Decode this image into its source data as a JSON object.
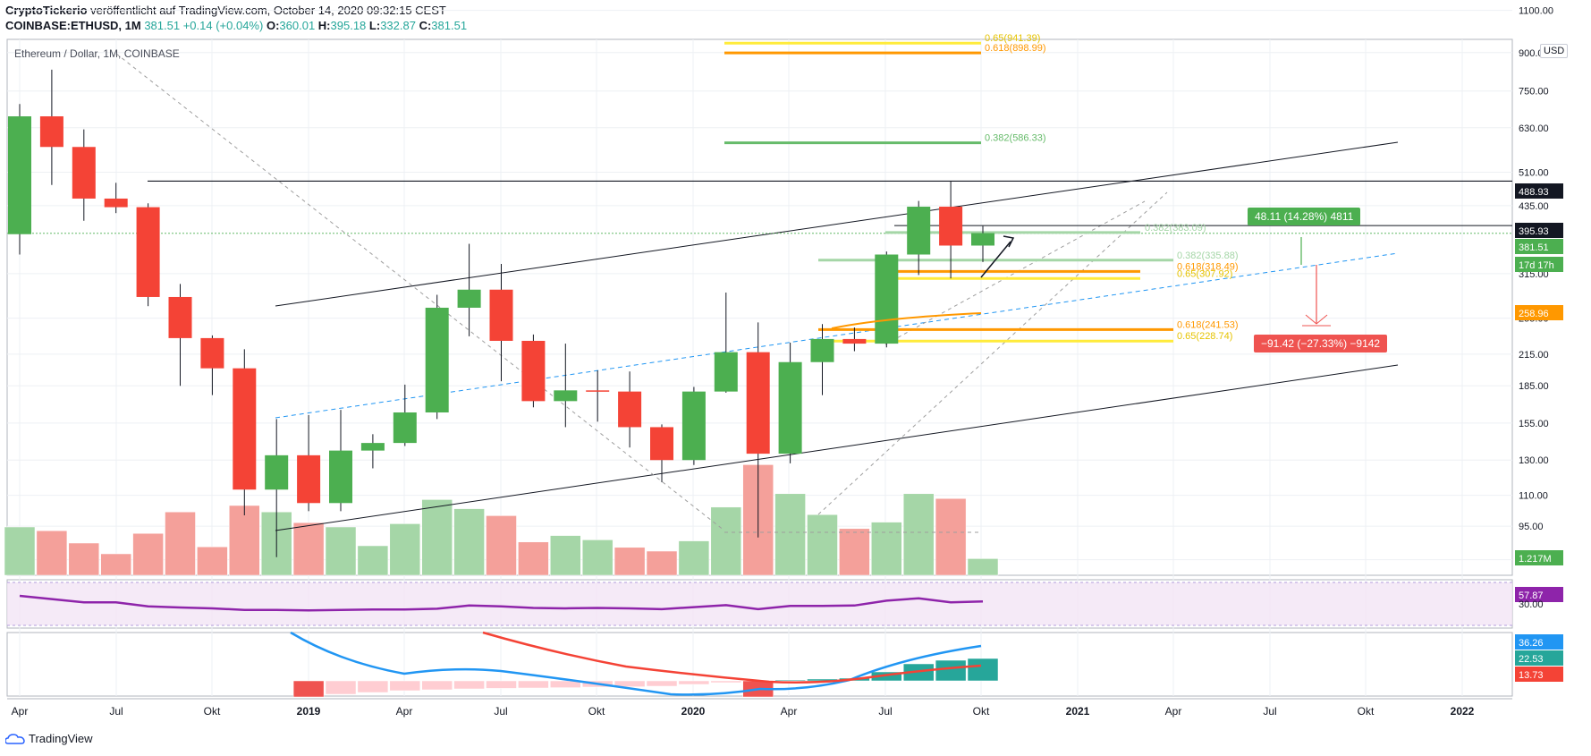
{
  "header": {
    "publisher": "CryptoTickerio",
    "published_text": " veröffentlicht auf TradingView.com, October 14, 2020 09:32:15 CEST",
    "symbol": "COINBASE:ETHUSD, 1M",
    "last": "381.51",
    "change": "+0.14 (+0.04%)",
    "o_label": "O:",
    "o": "360.01",
    "h_label": "H:",
    "h": "395.18",
    "l_label": "L:",
    "l": "332.87",
    "c_label": "C:",
    "c": "381.51"
  },
  "chart_title": "Ethereum / Dollar, 1M, COINBASE",
  "currency": "USD",
  "footer_brand": "TradingView",
  "colors": {
    "up": "#4caf50",
    "down": "#f44336",
    "vol_up": "#a5d6a7",
    "vol_down": "#f4a09a",
    "rsi": "#8e24aa",
    "ma_blue": "#2196f3",
    "ma_red": "#f44336",
    "fib_green": "#66bb6a",
    "fib_orange": "#ff9800",
    "fib_yellow": "#ffeb3b"
  },
  "chart_data": {
    "type": "candlestick",
    "scale": "log",
    "ylim": [
      68,
      1150
    ],
    "y_ticks": [
      "1100.00",
      "900.00",
      "750.00",
      "630.00",
      "510.00",
      "435.00",
      "315.00",
      "255.00",
      "215.00",
      "185.00",
      "155.00",
      "130.00",
      "110.00",
      "95.00",
      "81.00"
    ],
    "x_ticks": [
      "Apr",
      "Jul",
      "Okt",
      "2019",
      "Apr",
      "Jul",
      "Okt",
      "2020",
      "Apr",
      "Jul",
      "Okt",
      "2021",
      "Apr",
      "Jul",
      "Okt",
      "2022"
    ],
    "candles": [
      {
        "o": 380,
        "h": 705,
        "l": 345,
        "c": 665
      },
      {
        "o": 665,
        "h": 830,
        "l": 480,
        "c": 575
      },
      {
        "o": 575,
        "h": 625,
        "l": 405,
        "c": 450
      },
      {
        "o": 450,
        "h": 485,
        "l": 420,
        "c": 432
      },
      {
        "o": 432,
        "h": 440,
        "l": 270,
        "c": 282
      },
      {
        "o": 282,
        "h": 300,
        "l": 185,
        "c": 232
      },
      {
        "o": 232,
        "h": 235,
        "l": 177,
        "c": 201
      },
      {
        "o": 201,
        "h": 220,
        "l": 100,
        "c": 113
      },
      {
        "o": 113,
        "h": 158,
        "l": 82,
        "c": 133
      },
      {
        "o": 133,
        "h": 161,
        "l": 102,
        "c": 106
      },
      {
        "o": 106,
        "h": 165,
        "l": 102,
        "c": 136
      },
      {
        "o": 136,
        "h": 147,
        "l": 125,
        "c": 141
      },
      {
        "o": 141,
        "h": 186,
        "l": 139,
        "c": 163
      },
      {
        "o": 163,
        "h": 285,
        "l": 158,
        "c": 268
      },
      {
        "o": 268,
        "h": 363,
        "l": 234,
        "c": 292
      },
      {
        "o": 292,
        "h": 330,
        "l": 189,
        "c": 229
      },
      {
        "o": 229,
        "h": 236,
        "l": 167,
        "c": 172
      },
      {
        "o": 172,
        "h": 226,
        "l": 152,
        "c": 181
      },
      {
        "o": 181,
        "h": 199,
        "l": 156,
        "c": 180
      },
      {
        "o": 180,
        "h": 198,
        "l": 138,
        "c": 152
      },
      {
        "o": 152,
        "h": 154,
        "l": 117,
        "c": 130
      },
      {
        "o": 130,
        "h": 184,
        "l": 127,
        "c": 180
      },
      {
        "o": 180,
        "h": 288,
        "l": 179,
        "c": 217
      },
      {
        "o": 217,
        "h": 250,
        "l": 90,
        "c": 134
      },
      {
        "o": 134,
        "h": 227,
        "l": 128,
        "c": 207
      },
      {
        "o": 207,
        "h": 248,
        "l": 177,
        "c": 231
      },
      {
        "o": 231,
        "h": 244,
        "l": 218,
        "c": 226
      },
      {
        "o": 226,
        "h": 350,
        "l": 222,
        "c": 345
      },
      {
        "o": 345,
        "h": 445,
        "l": 313,
        "c": 433
      },
      {
        "o": 433,
        "h": 488,
        "l": 308,
        "c": 360
      },
      {
        "o": 360,
        "h": 395,
        "l": 333,
        "c": 382
      }
    ],
    "volume": [
      {
        "v": 0.9,
        "up": true
      },
      {
        "v": 0.83,
        "up": false
      },
      {
        "v": 0.6,
        "up": false
      },
      {
        "v": 0.4,
        "up": false
      },
      {
        "v": 0.78,
        "up": false
      },
      {
        "v": 1.18,
        "up": false
      },
      {
        "v": 0.53,
        "up": false
      },
      {
        "v": 1.3,
        "up": false
      },
      {
        "v": 1.18,
        "up": true
      },
      {
        "v": 0.98,
        "up": false
      },
      {
        "v": 0.9,
        "up": true
      },
      {
        "v": 0.55,
        "up": true
      },
      {
        "v": 0.96,
        "up": true
      },
      {
        "v": 1.41,
        "up": true
      },
      {
        "v": 1.24,
        "up": true
      },
      {
        "v": 1.11,
        "up": false
      },
      {
        "v": 0.62,
        "up": false
      },
      {
        "v": 0.74,
        "up": true
      },
      {
        "v": 0.66,
        "up": true
      },
      {
        "v": 0.52,
        "up": false
      },
      {
        "v": 0.45,
        "up": false
      },
      {
        "v": 0.64,
        "up": true
      },
      {
        "v": 1.27,
        "up": true
      },
      {
        "v": 2.06,
        "up": false
      },
      {
        "v": 1.52,
        "up": true
      },
      {
        "v": 1.13,
        "up": true
      },
      {
        "v": 0.87,
        "up": false
      },
      {
        "v": 0.99,
        "up": true
      },
      {
        "v": 1.52,
        "up": true
      },
      {
        "v": 1.43,
        "up": false
      },
      {
        "v": 0.31,
        "up": true
      }
    ],
    "rsi": [
      60,
      56,
      52,
      52,
      47,
      45.5,
      44.5,
      42.5,
      42.5,
      42,
      42.5,
      43,
      43,
      44,
      48,
      47,
      45,
      44.5,
      45,
      44.5,
      43.5,
      46,
      48.5,
      43.5,
      47.5,
      47.5,
      48,
      54,
      57,
      52,
      53
    ],
    "fib_levels": [
      {
        "label": "0.65(941.39)",
        "value": 941.39,
        "color": "#ffeb3b"
      },
      {
        "label": "0.618(898.99)",
        "value": 898.99,
        "color": "#ff9800"
      },
      {
        "label": "0.382(586.33)",
        "value": 586.33,
        "color": "#66bb6a"
      },
      {
        "label": "0.382(383.09)",
        "value": 383.09,
        "color": "#a5d6a7"
      },
      {
        "label": "0.382(335.88)",
        "value": 335.88,
        "color": "#a5d6a7"
      },
      {
        "label": "0.618(318.49)",
        "value": 318.49,
        "color": "#ff9800"
      },
      {
        "label": "0.65(307.92)",
        "value": 307.92,
        "color": "#ffeb3b"
      },
      {
        "label": "0.618(241.53)",
        "value": 241.53,
        "color": "#ff9800"
      },
      {
        "label": "0.65(228.74)",
        "value": 228.74,
        "color": "#ffeb3b"
      }
    ],
    "horizontal_line": 488.93,
    "price_labels": [
      {
        "text": "488.93",
        "bg": "#131722"
      },
      {
        "text": "395.93",
        "bg": "#131722"
      },
      {
        "text": "381.51",
        "bg": "#4caf50"
      },
      {
        "text": "17d 17h",
        "bg": "#4caf50"
      },
      {
        "text": "258.96",
        "bg": "#ff9800"
      },
      {
        "text": "1.217M",
        "bg": "#4caf50"
      }
    ],
    "rsi_labels": [
      {
        "text": "57.87",
        "bg": "#8e24aa"
      },
      {
        "text": "30.00",
        "bg": "none"
      }
    ],
    "ind_labels": [
      {
        "text": "36.26",
        "bg": "#2196f3"
      },
      {
        "text": "22.53",
        "bg": "#26a69a"
      },
      {
        "text": "13.73",
        "bg": "#f44336"
      }
    ],
    "callouts": {
      "up": "48.11 (14.28%) 4811",
      "down": "−91.42 (−27.33%) −9142"
    }
  }
}
